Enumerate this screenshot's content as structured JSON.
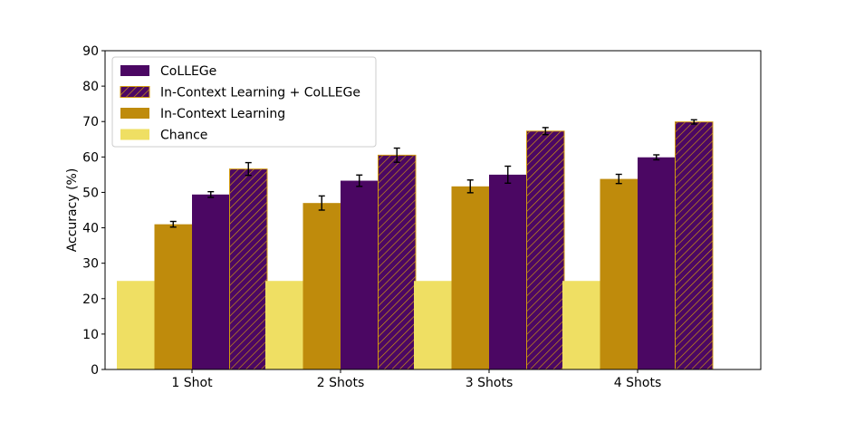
{
  "chart_data": {
    "type": "bar",
    "categories": [
      "1 Shot",
      "2 Shots",
      "3 Shots",
      "4 Shots"
    ],
    "xlabel": "",
    "ylabel": "Accuracy (%)",
    "ylim": [
      0,
      90
    ],
    "yticks": [
      0,
      10,
      20,
      30,
      40,
      50,
      60,
      70,
      80,
      90
    ],
    "grid": false,
    "legend_position": "top-left",
    "series": [
      {
        "name": "Chance",
        "color": "#efdf63",
        "hatch": false,
        "values": [
          25,
          25,
          25,
          25
        ],
        "errors": [
          0,
          0,
          0,
          0
        ]
      },
      {
        "name": "In-Context Learning",
        "color": "#bf8b0c",
        "hatch": false,
        "values": [
          41,
          47,
          51.7,
          53.8
        ],
        "errors": [
          0.8,
          2.0,
          1.8,
          1.3
        ]
      },
      {
        "name": "CoLLEGe",
        "color": "#4b0763",
        "hatch": false,
        "values": [
          49.4,
          53.3,
          55,
          59.9
        ],
        "errors": [
          0.8,
          1.6,
          2.4,
          0.7
        ]
      },
      {
        "name": "In-Context Learning + CoLLEGe",
        "color": "#4b0763",
        "edge_color": "#d09a10",
        "hatch": true,
        "values": [
          56.6,
          60.5,
          67.3,
          69.9
        ],
        "errors": [
          1.8,
          2.0,
          1.0,
          0.6
        ]
      }
    ],
    "legend_order": [
      "CoLLEGe",
      "In-Context Learning + CoLLEGe",
      "In-Context Learning",
      "Chance"
    ]
  }
}
